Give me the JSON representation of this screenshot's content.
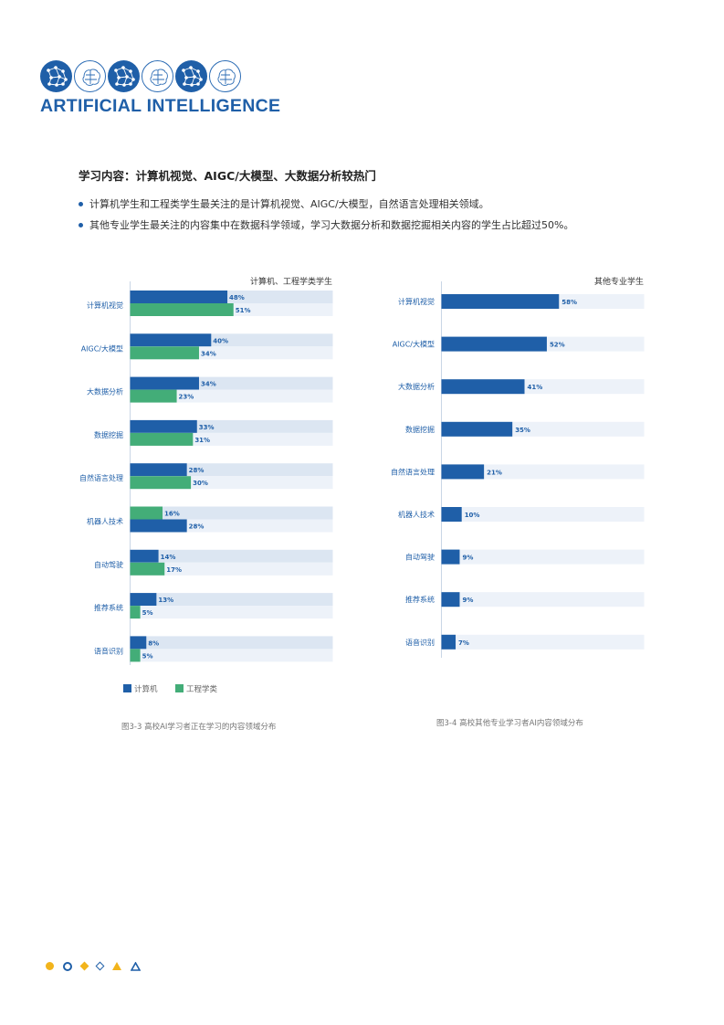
{
  "brand": {
    "title": "ARTIFICIAL INTELLIGENCE"
  },
  "section": {
    "title": "学习内容：计算机视觉、AIGC/大模型、大数据分析较热门",
    "bullets": [
      "计算机学生和工程类学生最关注的是计算机视觉、AIGC/大模型，自然语言处理相关领域。",
      "其他专业学生最关注的内容集中在数据科学领域，学习大数据分析和数据挖掘相关内容的学生占比超过50%。"
    ]
  },
  "colors": {
    "primary": "#1f5fa8",
    "green": "#43ad78",
    "track": "#dce6f2",
    "track_light": "#edf2f9",
    "accent_yellow": "#f2b41c"
  },
  "chart_data": [
    {
      "type": "bar",
      "orientation": "horizontal",
      "title": "计算机、工程学类学生",
      "categories": [
        "计算机视觉",
        "AIGC/大模型",
        "大数据分析",
        "数据挖掘",
        "自然语言处理",
        "机器人技术",
        "自动驾驶",
        "推荐系统",
        "语音识别"
      ],
      "series": [
        {
          "name": "计算机",
          "color": "#1f5fa8",
          "values": [
            48,
            40,
            34,
            33,
            28,
            28,
            14,
            13,
            8
          ]
        },
        {
          "name": "工程学类",
          "color": "#43ad78",
          "values": [
            51,
            34,
            23,
            31,
            30,
            16,
            17,
            5,
            5
          ]
        }
      ],
      "series_order": [
        [
          0,
          1
        ],
        [
          0,
          1
        ],
        [
          0,
          1
        ],
        [
          0,
          1
        ],
        [
          0,
          1
        ],
        [
          1,
          0
        ],
        [
          0,
          1
        ],
        [
          0,
          1
        ],
        [
          0,
          1
        ]
      ],
      "value_labels": [
        [
          "48%",
          "51%"
        ],
        [
          "40%",
          "34%"
        ],
        [
          "34%",
          "23%"
        ],
        [
          "33%",
          "31%"
        ],
        [
          "28%",
          "30%"
        ],
        [
          "16%",
          "28%"
        ],
        [
          "14%",
          "17%"
        ],
        [
          "13%",
          "5%"
        ],
        [
          "8%",
          "5%"
        ]
      ],
      "xlim": [
        0,
        100
      ],
      "legend": "bottom-left",
      "caption": "图3-3 高校AI学习者正在学习的内容领域分布"
    },
    {
      "type": "bar",
      "orientation": "horizontal",
      "title": "其他专业学生",
      "categories": [
        "计算机视觉",
        "AIGC/大模型",
        "大数据分析",
        "数据挖掘",
        "自然语言处理",
        "机器人技术",
        "自动驾驶",
        "推荐系统",
        "语音识别"
      ],
      "series": [
        {
          "color": "#1f5fa8",
          "values": [
            58,
            52,
            41,
            35,
            21,
            10,
            9,
            9,
            7
          ]
        }
      ],
      "value_labels": [
        "58%",
        "52%",
        "41%",
        "35%",
        "21%",
        "10%",
        "9%",
        "9%",
        "7%"
      ],
      "xlim": [
        0,
        100
      ],
      "caption": "图3-4 高校其他专业学习者AI内容领域分布"
    }
  ],
  "footer": {
    "icons": [
      "yellow-circle-icon",
      "blue-ring-icon",
      "yellow-diamond-icon",
      "blue-diamond-outline-icon",
      "yellow-triangle-icon",
      "blue-triangle-outline-icon"
    ]
  }
}
